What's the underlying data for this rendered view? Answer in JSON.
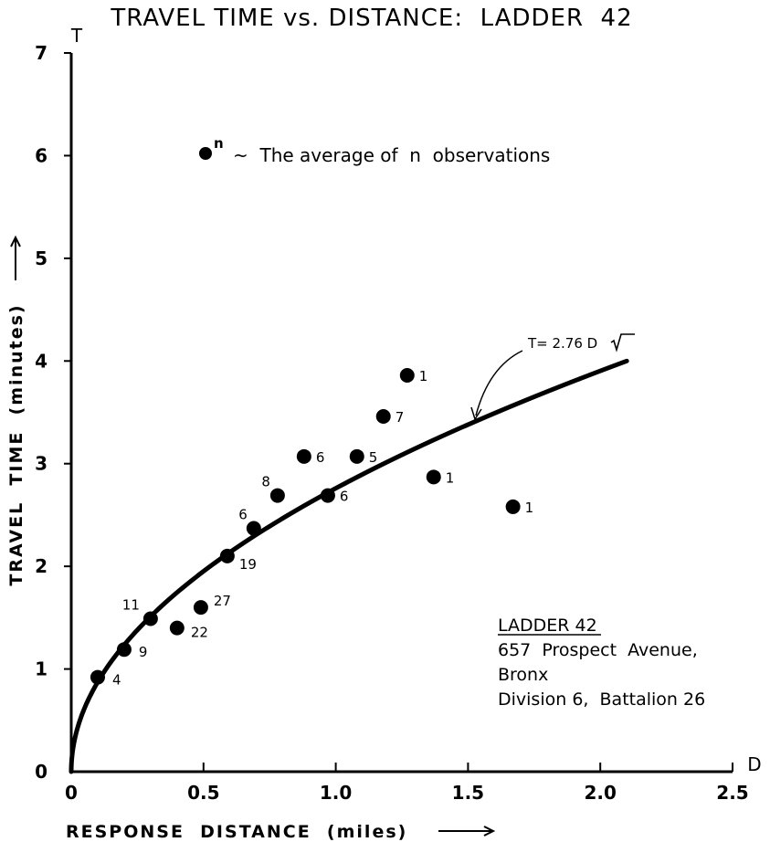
{
  "chart_data": {
    "type": "scatter",
    "title": "TRAVEL TIME vs. DISTANCE:  LADDER  42",
    "xlabel": "RESPONSE  DISTANCE  (miles)",
    "ylabel": "TRAVEL  TIME  (minutes)",
    "x_axis_letter": "D",
    "y_axis_letter": "T",
    "xlim": [
      0,
      2.5
    ],
    "ylim": [
      0,
      7
    ],
    "x_ticks": [
      0,
      0.5,
      1.0,
      1.5,
      2.0,
      2.5
    ],
    "x_tick_labels": [
      "0",
      "0.5",
      "1.0",
      "1.5",
      "2.0",
      "2.5"
    ],
    "y_ticks": [
      0,
      1,
      2,
      3,
      4,
      5,
      6,
      7
    ],
    "y_tick_labels": [
      "0",
      "1",
      "2",
      "3",
      "4",
      "5",
      "6",
      "7"
    ],
    "grid": false,
    "points": [
      {
        "x": 0.1,
        "y": 0.92,
        "n": "4"
      },
      {
        "x": 0.2,
        "y": 1.19,
        "n": "9"
      },
      {
        "x": 0.3,
        "y": 1.49,
        "n": "11"
      },
      {
        "x": 0.4,
        "y": 1.4,
        "n": "22"
      },
      {
        "x": 0.49,
        "y": 1.6,
        "n": "27"
      },
      {
        "x": 0.59,
        "y": 2.1,
        "n": "19"
      },
      {
        "x": 0.69,
        "y": 2.37,
        "n": "6"
      },
      {
        "x": 0.78,
        "y": 2.69,
        "n": "8"
      },
      {
        "x": 0.88,
        "y": 3.07,
        "n": "6"
      },
      {
        "x": 0.97,
        "y": 2.69,
        "n": "6"
      },
      {
        "x": 1.08,
        "y": 3.07,
        "n": "5"
      },
      {
        "x": 1.18,
        "y": 3.46,
        "n": "7"
      },
      {
        "x": 1.27,
        "y": 3.86,
        "n": "1"
      },
      {
        "x": 1.37,
        "y": 2.87,
        "n": "1"
      },
      {
        "x": 1.67,
        "y": 2.58,
        "n": "1"
      }
    ],
    "fit": {
      "label_prefix": "T= 2.76 ",
      "label_radical": "D",
      "coefficient": 2.76,
      "x_range": [
        0,
        2.1
      ]
    },
    "legend": {
      "marker_label": "n",
      "text": "~  The average of  n  observations"
    },
    "info": {
      "title": "LADDER 42",
      "lines": [
        "657  Prospect  Avenue,",
        "Bronx",
        "Division 6,  Battalion 26"
      ]
    }
  }
}
